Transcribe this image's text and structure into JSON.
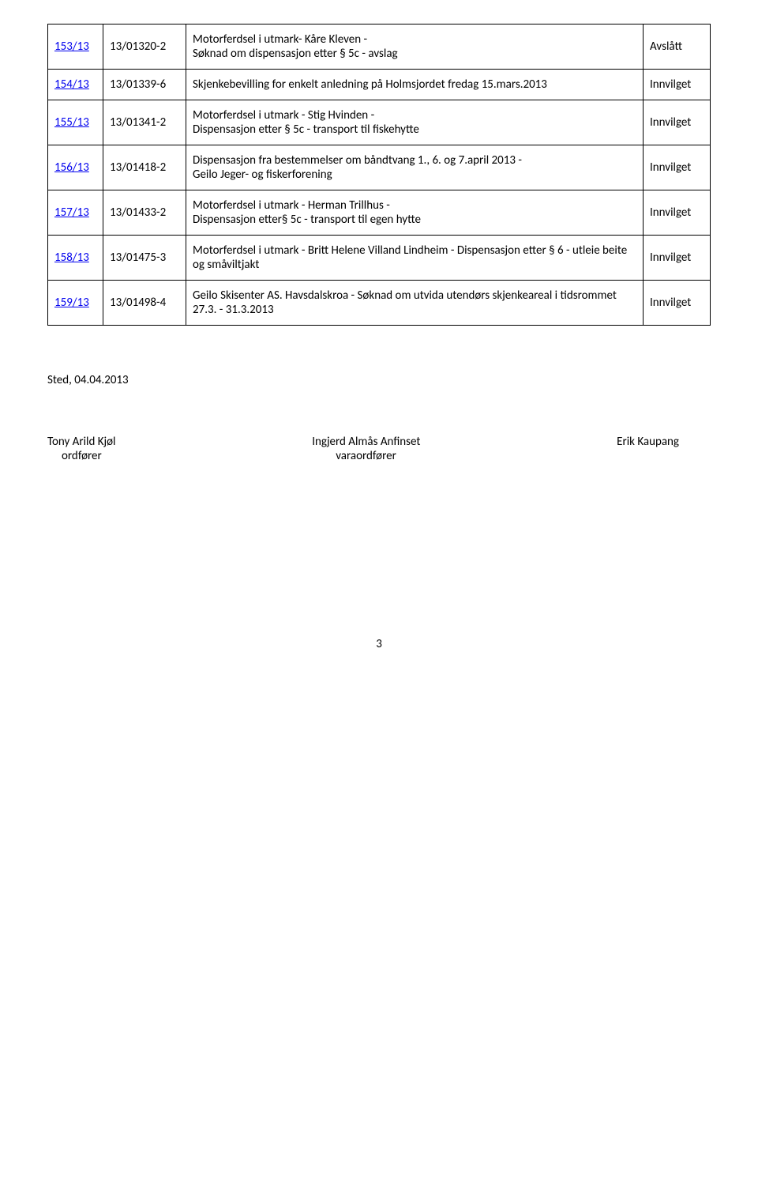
{
  "rows": [
    {
      "id": "153/13",
      "ref": "13/01320-2",
      "desc": "Motorferdsel i utmark- Kåre Kleven -\nSøknad om dispensasjon etter § 5c - avslag",
      "status": "Avslått"
    },
    {
      "id": "154/13",
      "ref": "13/01339-6",
      "desc": "Skjenkebevilling for enkelt anledning på Holmsjordet fredag 15.mars.2013",
      "status": "Innvilget"
    },
    {
      "id": "155/13",
      "ref": "13/01341-2",
      "desc": "Motorferdsel i utmark - Stig Hvinden -\nDispensasjon etter § 5c - transport til fiskehytte",
      "status": "Innvilget"
    },
    {
      "id": "156/13",
      "ref": "13/01418-2",
      "desc": "Dispensasjon fra bestemmelser om båndtvang 1., 6. og 7.april 2013 -\nGeilo Jeger- og fiskerforening",
      "status": "Innvilget"
    },
    {
      "id": "157/13",
      "ref": "13/01433-2",
      "desc": "Motorferdsel i utmark - Herman Trillhus -\nDispensasjon etter§ 5c - transport til egen hytte",
      "status": "Innvilget"
    },
    {
      "id": "158/13",
      "ref": "13/01475-3",
      "desc": "Motorferdsel i utmark - Britt Helene Villand Lindheim - Dispensasjon etter § 6 - utleie beite og småviltjakt",
      "status": "Innvilget"
    },
    {
      "id": "159/13",
      "ref": "13/01498-4",
      "desc": "Geilo Skisenter AS.  Havsdalskroa  - Søknad om utvida utendørs skjenkeareal i tidsrommet  27.3. - 31.3.2013",
      "status": "Innvilget"
    }
  ],
  "place_date": "Sted, 04.04.2013",
  "sig1_name": "Tony Arild Kjøl",
  "sig1_title": "ordfører",
  "sig2_name": "Ingjerd Almås Anfinset",
  "sig2_title": "varaordfører",
  "sig3_name": "Erik Kaupang",
  "page_number": "3"
}
